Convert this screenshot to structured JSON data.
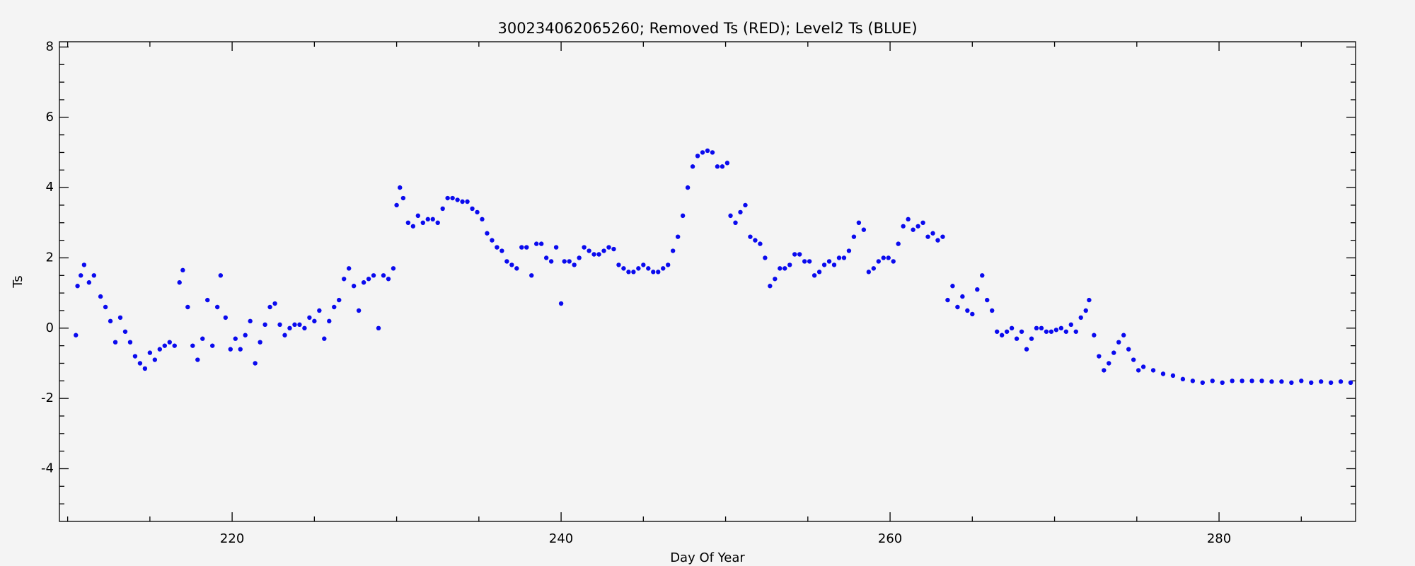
{
  "chart_data": {
    "type": "scatter",
    "title": "300234062065260; Removed Ts (RED); Level2 Ts (BLUE)",
    "xlabel": "Day Of Year",
    "ylabel": "Ts",
    "color": "#0a0aee",
    "xlim": [
      209.5,
      288.3
    ],
    "ylim": [
      -5.5,
      8.15
    ],
    "xticks": [
      220,
      240,
      260,
      280
    ],
    "xminorticks": [
      210,
      215,
      225,
      230,
      235,
      245,
      250,
      255,
      265,
      270,
      275,
      285
    ],
    "yticks": [
      -4,
      -2,
      0,
      2,
      4,
      6,
      8
    ],
    "yminorticks": [
      -5,
      -4.5,
      -3.5,
      -3,
      -2.5,
      -1.5,
      -1,
      -0.5,
      0.5,
      1,
      1.5,
      2.5,
      3,
      3.5,
      4.5,
      5,
      5.5,
      6.5,
      7,
      7.5
    ],
    "x": [
      210.5,
      210.6,
      210.8,
      211.0,
      211.3,
      211.6,
      212.0,
      212.3,
      212.6,
      212.9,
      213.2,
      213.5,
      213.8,
      214.1,
      214.4,
      214.7,
      215.0,
      215.3,
      215.6,
      215.9,
      216.2,
      216.5,
      216.8,
      217.0,
      217.3,
      217.6,
      217.9,
      218.2,
      218.5,
      218.8,
      219.1,
      219.3,
      219.6,
      219.9,
      220.2,
      220.5,
      220.8,
      221.1,
      221.4,
      221.7,
      222.0,
      222.3,
      222.6,
      222.9,
      223.2,
      223.5,
      223.8,
      224.1,
      224.4,
      224.7,
      225.0,
      225.3,
      225.6,
      225.9,
      226.2,
      226.5,
      226.8,
      227.1,
      227.4,
      227.7,
      228.0,
      228.3,
      228.6,
      228.9,
      229.2,
      229.5,
      229.8,
      230.0,
      230.2,
      230.4,
      230.7,
      231.0,
      231.3,
      231.6,
      231.9,
      232.2,
      232.5,
      232.8,
      233.1,
      233.4,
      233.7,
      234.0,
      234.3,
      234.6,
      234.9,
      235.2,
      235.5,
      235.8,
      236.1,
      236.4,
      236.7,
      237.0,
      237.3,
      237.6,
      237.9,
      238.2,
      238.5,
      238.8,
      239.1,
      239.4,
      239.7,
      240.0,
      240.2,
      240.5,
      240.8,
      241.1,
      241.4,
      241.7,
      242.0,
      242.3,
      242.6,
      242.9,
      243.2,
      243.5,
      243.8,
      244.1,
      244.4,
      244.7,
      245.0,
      245.3,
      245.6,
      245.9,
      246.2,
      246.5,
      246.8,
      247.1,
      247.4,
      247.7,
      248.0,
      248.3,
      248.6,
      248.9,
      249.2,
      249.5,
      249.8,
      250.1,
      250.3,
      250.6,
      250.9,
      251.2,
      251.5,
      251.8,
      252.1,
      252.4,
      252.7,
      253.0,
      253.3,
      253.6,
      253.9,
      254.2,
      254.5,
      254.8,
      255.1,
      255.4,
      255.7,
      256.0,
      256.3,
      256.6,
      256.9,
      257.2,
      257.5,
      257.8,
      258.1,
      258.4,
      258.7,
      259.0,
      259.3,
      259.6,
      259.9,
      260.2,
      260.5,
      260.8,
      261.1,
      261.4,
      261.7,
      262.0,
      262.3,
      262.6,
      262.9,
      263.2,
      263.5,
      263.8,
      264.1,
      264.4,
      264.7,
      265.0,
      265.3,
      265.6,
      265.9,
      266.2,
      266.5,
      266.8,
      267.1,
      267.4,
      267.7,
      268.0,
      268.3,
      268.6,
      268.9,
      269.2,
      269.5,
      269.8,
      270.1,
      270.4,
      270.7,
      271.0,
      271.3,
      271.6,
      271.9,
      272.1,
      272.4,
      272.7,
      273.0,
      273.3,
      273.6,
      273.9,
      274.2,
      274.5,
      274.8,
      275.1,
      275.4,
      276.0,
      276.6,
      277.2,
      277.8,
      278.4,
      279.0,
      279.6,
      280.2,
      280.8,
      281.4,
      282.0,
      282.6,
      283.2,
      283.8,
      284.4,
      285.0,
      285.6,
      286.2,
      286.8,
      287.4,
      288.0
    ],
    "values": [
      -0.2,
      1.2,
      1.5,
      1.8,
      1.3,
      1.5,
      0.9,
      0.6,
      0.2,
      -0.4,
      0.3,
      -0.1,
      -0.4,
      -0.8,
      -1.0,
      -1.15,
      -0.7,
      -0.9,
      -0.6,
      -0.5,
      -0.4,
      -0.5,
      1.3,
      1.65,
      0.6,
      -0.5,
      -0.9,
      -0.3,
      0.8,
      -0.5,
      0.6,
      1.5,
      0.3,
      -0.6,
      -0.3,
      -0.6,
      -0.2,
      0.2,
      -1.0,
      -0.4,
      0.1,
      0.6,
      0.7,
      0.1,
      -0.2,
      0.0,
      0.1,
      0.1,
      0.0,
      0.3,
      0.2,
      0.5,
      -0.3,
      0.2,
      0.6,
      0.8,
      1.4,
      1.7,
      1.2,
      0.5,
      1.3,
      1.4,
      1.5,
      0.0,
      1.5,
      1.4,
      1.7,
      3.5,
      4.0,
      3.7,
      3.0,
      2.9,
      3.2,
      3.0,
      3.1,
      3.1,
      3.0,
      3.4,
      3.7,
      3.7,
      3.65,
      3.6,
      3.6,
      3.4,
      3.3,
      3.1,
      2.7,
      2.5,
      2.3,
      2.2,
      1.9,
      1.8,
      1.7,
      2.3,
      2.3,
      1.5,
      2.4,
      2.4,
      2.0,
      1.9,
      2.3,
      0.7,
      1.9,
      1.9,
      1.8,
      2.0,
      2.3,
      2.2,
      2.1,
      2.1,
      2.2,
      2.3,
      2.25,
      1.8,
      1.7,
      1.6,
      1.6,
      1.7,
      1.8,
      1.7,
      1.6,
      1.6,
      1.7,
      1.8,
      2.2,
      2.6,
      3.2,
      4.0,
      4.6,
      4.9,
      5.0,
      5.05,
      5.0,
      4.6,
      4.6,
      4.7,
      3.2,
      3.0,
      3.3,
      3.5,
      2.6,
      2.5,
      2.4,
      2.0,
      1.2,
      1.4,
      1.7,
      1.7,
      1.8,
      2.1,
      2.1,
      1.9,
      1.9,
      1.5,
      1.6,
      1.8,
      1.9,
      1.8,
      2.0,
      2.0,
      2.2,
      2.6,
      3.0,
      2.8,
      1.6,
      1.7,
      1.9,
      2.0,
      2.0,
      1.9,
      2.4,
      2.9,
      3.1,
      2.8,
      2.9,
      3.0,
      2.6,
      2.7,
      2.5,
      2.6,
      0.8,
      1.2,
      0.6,
      0.9,
      0.5,
      0.4,
      1.1,
      1.5,
      0.8,
      0.5,
      -0.1,
      -0.2,
      -0.1,
      0.0,
      -0.3,
      -0.1,
      -0.6,
      -0.3,
      0.0,
      0.0,
      -0.1,
      -0.1,
      -0.05,
      0.0,
      -0.1,
      0.1,
      -0.1,
      0.3,
      0.5,
      0.8,
      -0.2,
      -0.8,
      -1.2,
      -1.0,
      -0.7,
      -0.4,
      -0.2,
      -0.6,
      -0.9,
      -1.2,
      -1.1,
      -1.2,
      -1.3,
      -1.35,
      -1.45,
      -1.5,
      -1.55,
      -1.5,
      -1.55,
      -1.5,
      -1.5,
      -1.5,
      -1.5,
      -1.52,
      -1.52,
      -1.55,
      -1.5,
      -1.55,
      -1.52,
      -1.55,
      -1.52,
      -1.55
    ]
  }
}
